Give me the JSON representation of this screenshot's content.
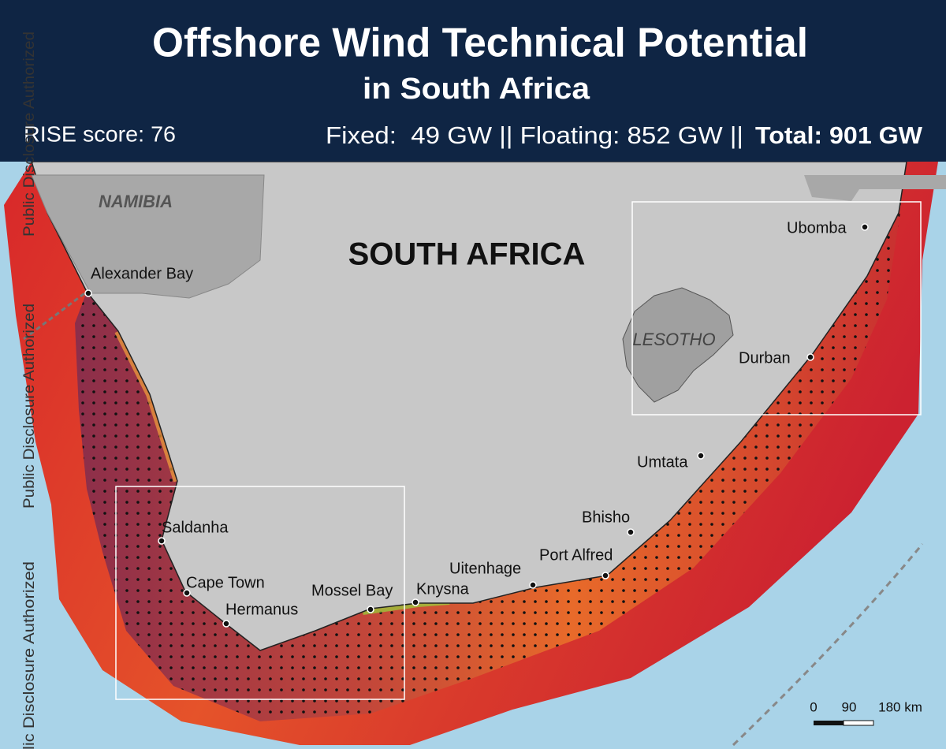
{
  "header": {
    "title": "Offshore Wind Technical Potential",
    "subtitle": "in South Africa",
    "rise_score": "RISE score: 76",
    "capacity": "Fixed:  49 GW || Floating: 852 GW ||",
    "total": "Total: 901 GW"
  },
  "map": {
    "countries": [
      "NAMIBIA",
      "SOUTH AFRICA",
      "LESOTHO"
    ],
    "cities": [
      "Alexander Bay",
      "Saldanha",
      "Cape Town",
      "Hermanus",
      "Mossel Bay",
      "Knysna",
      "Uitenhage",
      "Port Alfred",
      "Bhisho",
      "Umtata",
      "Durban",
      "Ubomba"
    ],
    "scale_labels": [
      "0",
      "90",
      "180 km"
    ]
  },
  "watermark": [
    "Public Disclosure Authorized",
    "Public Disclosure Authorized",
    "Public Disclosure Authorized"
  ]
}
